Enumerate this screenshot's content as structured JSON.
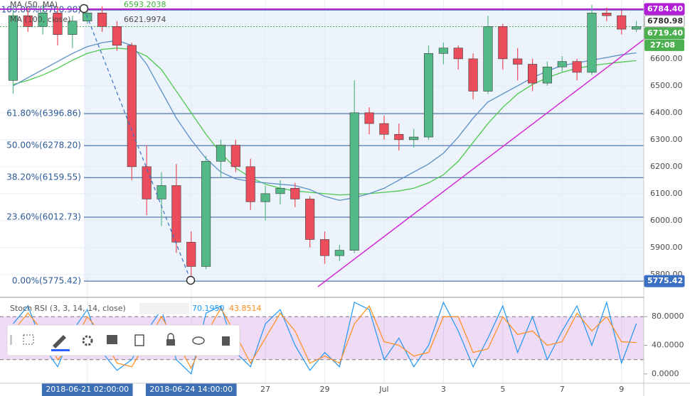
{
  "chart_data": [
    {
      "type": "candlestick",
      "categories": [
        null,
        null,
        null,
        null,
        null,
        "2018-06-21 02:00:00",
        null,
        null,
        null,
        null,
        null,
        null,
        "2018-06-24 14:00:00",
        null,
        null,
        null,
        null,
        "27",
        null,
        null,
        null,
        "29",
        null,
        null,
        null,
        "Jul",
        null,
        null,
        null,
        "3",
        null,
        null,
        null,
        "5",
        null,
        null,
        null,
        "7",
        null,
        null,
        null,
        "9",
        null
      ],
      "open": [
        6520,
        6760,
        6720,
        6770,
        6690,
        6740,
        6770,
        6720,
        6650,
        6200,
        6080,
        6130,
        5920,
        5830,
        6220,
        6280,
        6200,
        6070,
        6100,
        6120,
        6080,
        5930,
        5870,
        5890,
        6400,
        6360,
        6320,
        6300,
        6310,
        6620,
        6640,
        6600,
        6480,
        6720,
        6600,
        6580,
        6510,
        6570,
        6590,
        6550,
        6770,
        6760,
        6710
      ],
      "high": [
        6790,
        6790,
        6800,
        6795,
        6760,
        6800,
        6795,
        6740,
        6660,
        6280,
        6180,
        6210,
        5960,
        6240,
        6300,
        6300,
        6230,
        6130,
        6150,
        6140,
        6090,
        5960,
        5910,
        6520,
        6420,
        6390,
        6360,
        6340,
        6650,
        6660,
        6650,
        6620,
        6760,
        6730,
        6640,
        6600,
        6590,
        6610,
        6600,
        6800,
        6790,
        6780,
        6740
      ],
      "low": [
        6470,
        6700,
        6690,
        6650,
        6640,
        6730,
        6700,
        6630,
        6150,
        6020,
        5980,
        5880,
        5775.42,
        5820,
        6160,
        6180,
        6040,
        6000,
        6060,
        6050,
        5900,
        5840,
        5850,
        5880,
        6320,
        6300,
        6260,
        6270,
        6300,
        6580,
        6560,
        6450,
        6470,
        6560,
        6520,
        6480,
        6500,
        6550,
        6520,
        6540,
        6740,
        6690,
        6700
      ],
      "close": [
        6760,
        6720,
        6770,
        6690,
        6740,
        6770,
        6720,
        6650,
        6200,
        6080,
        6130,
        5920,
        5830,
        6220,
        6280,
        6200,
        6070,
        6100,
        6120,
        6080,
        5930,
        5870,
        5890,
        6400,
        6360,
        6320,
        6300,
        6310,
        6620,
        6640,
        6600,
        6480,
        6720,
        6600,
        6580,
        6510,
        6570,
        6590,
        6550,
        6770,
        6760,
        6710,
        6719.4
      ],
      "up_color": "#53b987",
      "down_color": "#eb4d5c",
      "ylim": [
        5718,
        6805
      ],
      "yticks": [
        {
          "value": 5800,
          "label": "5800.00"
        },
        {
          "value": 5900,
          "label": "5900.00"
        },
        {
          "value": 6000,
          "label": "6000.00"
        },
        {
          "value": 6100,
          "label": "6100.00"
        },
        {
          "value": 6200,
          "label": "6200.00"
        },
        {
          "value": 6300,
          "label": "6300.00"
        },
        {
          "value": 6400,
          "label": "6400.00"
        },
        {
          "value": 6500,
          "label": "6500.00"
        },
        {
          "value": 6600,
          "label": "6600.00"
        }
      ],
      "grid": true,
      "moving_averages": [
        {
          "name": "MA (50, MA)",
          "color": "#4cc94c",
          "values": [
            6505,
            6520,
            6540,
            6565,
            6595,
            6620,
            6635,
            6640,
            6635,
            6610,
            6560,
            6480,
            6400,
            6320,
            6250,
            6195,
            6160,
            6135,
            6120,
            6110,
            6105,
            6100,
            6095,
            6098,
            6100,
            6105,
            6110,
            6120,
            6140,
            6170,
            6220,
            6290,
            6360,
            6420,
            6470,
            6505,
            6530,
            6550,
            6565,
            6575,
            6582,
            6588,
            6593.2038
          ]
        },
        {
          "name": "MA (100, close)",
          "color": "#5a8fc7",
          "values": [
            6500,
            6530,
            6560,
            6590,
            6620,
            6645,
            6660,
            6668,
            6650,
            6580,
            6480,
            6380,
            6300,
            6230,
            6180,
            6155,
            6145,
            6140,
            6135,
            6130,
            6115,
            6090,
            6075,
            6085,
            6100,
            6120,
            6150,
            6180,
            6210,
            6250,
            6310,
            6380,
            6440,
            6470,
            6500,
            6530,
            6555,
            6575,
            6585,
            6595,
            6605,
            6615,
            6621.9974
          ]
        }
      ],
      "fibonacci": [
        {
          "label": "100.00%(6780.98)",
          "value": 6780.98
        },
        {
          "label": "61.80%(6396.86)",
          "value": 6396.86
        },
        {
          "label": "50.00%(6278.20)",
          "value": 6278.2
        },
        {
          "label": "38.20%(6159.55)",
          "value": 6159.55
        },
        {
          "label": "23.60%(6012.73)",
          "value": 6012.73
        },
        {
          "label": "0.00%(5775.42)",
          "value": 5775.42
        }
      ],
      "price_tags": [
        {
          "value": 6784.4,
          "label": "6784.40",
          "color": "#b01fd6",
          "line": "solid"
        },
        {
          "value": 6780.98,
          "label": "6780.98",
          "color": "#ffffff"
        },
        {
          "value": 6719.4,
          "label": "6719.40",
          "color": "#4caf50",
          "line": "dotted"
        },
        {
          "value": 5775.42,
          "label": "5775.42",
          "color": "#3a6fc4"
        }
      ],
      "countdown": "27:08"
    },
    {
      "type": "line",
      "title": "Stoch RSI (3, 3, 14, 14, close)",
      "series": [
        {
          "color": "#2196f3",
          "values": [
            70,
            95,
            40,
            10,
            60,
            90,
            30,
            5,
            20,
            60,
            90,
            20,
            0,
            85,
            95,
            30,
            10,
            70,
            90,
            40,
            5,
            30,
            10,
            100,
            90,
            20,
            50,
            10,
            40,
            100,
            60,
            10,
            50,
            95,
            30,
            80,
            20,
            60,
            95,
            40,
            100,
            15,
            70.195
          ],
          "last": {
            "value": 70.195,
            "label": "70.1950"
          }
        },
        {
          "color": "#ff8c1a",
          "values": [
            60,
            85,
            60,
            20,
            40,
            80,
            55,
            15,
            10,
            45,
            80,
            45,
            8,
            55,
            92,
            55,
            15,
            50,
            85,
            60,
            15,
            25,
            15,
            70,
            95,
            45,
            40,
            25,
            30,
            80,
            80,
            30,
            35,
            80,
            55,
            60,
            40,
            45,
            85,
            60,
            80,
            45,
            43.8514
          ],
          "last": {
            "value": 43.8514,
            "label": "43.8514"
          }
        }
      ],
      "ylim": [
        -13,
        106
      ],
      "yticks": [
        {
          "value": 0,
          "label": "0.0000"
        },
        {
          "value": 40,
          "label": "40.0000"
        },
        {
          "value": 80,
          "label": "80.0000"
        }
      ],
      "band": [
        20,
        80
      ]
    }
  ]
}
